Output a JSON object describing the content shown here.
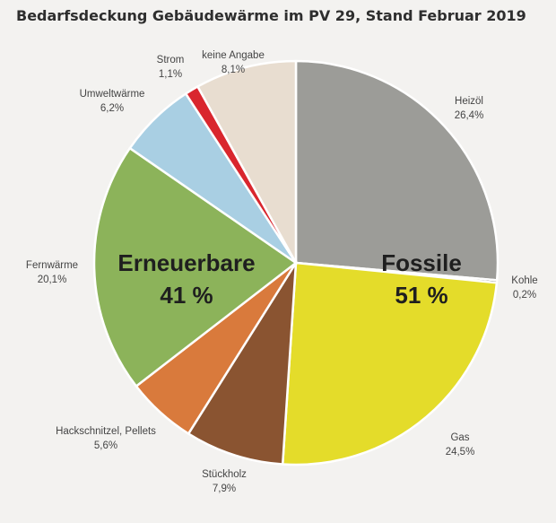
{
  "chart_data": {
    "type": "pie",
    "title": "Bedarfsdeckung Gebäudewärme im PV 29, Stand Februar 2019",
    "slices": [
      {
        "label": "Heizöl",
        "value_text": "26,4%",
        "value": 26.4,
        "color": "#9c9c98"
      },
      {
        "label": "Kohle",
        "value_text": "0,2%",
        "value": 0.2,
        "color": "#3f3f3f"
      },
      {
        "label": "Gas",
        "value_text": "24,5%",
        "value": 24.5,
        "color": "#e4dc2a"
      },
      {
        "label": "Stückholz",
        "value_text": "7,9%",
        "value": 7.9,
        "color": "#8a5431"
      },
      {
        "label": "Hackschnitzel, Pellets",
        "value_text": "5,6%",
        "value": 5.6,
        "color": "#d97a3c"
      },
      {
        "label": "Fernwärme",
        "value_text": "20,1%",
        "value": 20.1,
        "color": "#8cb35a"
      },
      {
        "label": "Umweltwärme",
        "value_text": "6,2%",
        "value": 6.2,
        "color": "#a9cfe3"
      },
      {
        "label": "Strom",
        "value_text": "1,1%",
        "value": 1.1,
        "color": "#d9262e"
      },
      {
        "label": "keine Angabe",
        "value_text": "8,1%",
        "value": 8.1,
        "color": "#e8ddd0"
      }
    ],
    "groups": [
      {
        "name": "Fossile",
        "value_text": "51 %"
      },
      {
        "name": "Erneuerbare",
        "value_text": "41 %"
      }
    ]
  }
}
